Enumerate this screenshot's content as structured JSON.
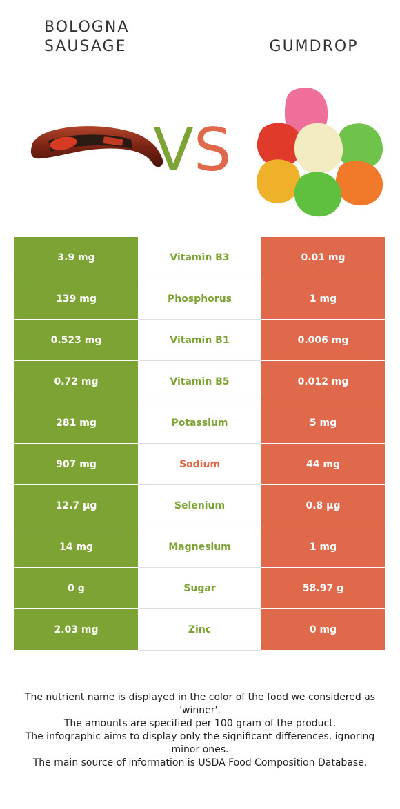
{
  "left_food": {
    "title_line1": "BOLOGNA",
    "title_line2": "SAUSAGE",
    "color": "#7ca333"
  },
  "right_food": {
    "title": "GUMDROP",
    "color": "#e0684b"
  },
  "vs": {
    "v": "V",
    "s": "S"
  },
  "nutrients": [
    {
      "left": "3.9 mg",
      "name": "Vitamin B3",
      "right": "0.01 mg",
      "winner": "left"
    },
    {
      "left": "139 mg",
      "name": "Phosphorus",
      "right": "1 mg",
      "winner": "left"
    },
    {
      "left": "0.523 mg",
      "name": "Vitamin B1",
      "right": "0.006 mg",
      "winner": "left"
    },
    {
      "left": "0.72 mg",
      "name": "Vitamin B5",
      "right": "0.012 mg",
      "winner": "left"
    },
    {
      "left": "281 mg",
      "name": "Potassium",
      "right": "5 mg",
      "winner": "left"
    },
    {
      "left": "907 mg",
      "name": "Sodium",
      "right": "44 mg",
      "winner": "right"
    },
    {
      "left": "12.7 µg",
      "name": "Selenium",
      "right": "0.8 µg",
      "winner": "left"
    },
    {
      "left": "14 mg",
      "name": "Magnesium",
      "right": "1 mg",
      "winner": "left"
    },
    {
      "left": "0 g",
      "name": "Sugar",
      "right": "58.97 g",
      "winner": "left"
    },
    {
      "left": "2.03 mg",
      "name": "Zinc",
      "right": "0 mg",
      "winner": "left"
    }
  ],
  "footer": [
    "The nutrient name is displayed in the color of the food we considered as 'winner'.",
    "The amounts are specified per 100 gram of the product.",
    "The infographic aims to display only the significant differences, ignoring minor ones.",
    "The main source of information is USDA Food Composition Database."
  ]
}
